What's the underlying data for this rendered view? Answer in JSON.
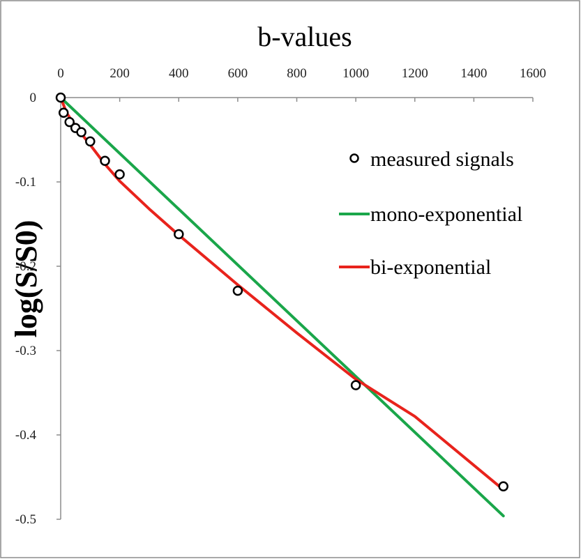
{
  "chart_data": {
    "type": "scatter",
    "xlabel": "b-values",
    "ylabel": "log(S/S0)",
    "xlim": [
      0,
      1600
    ],
    "ylim": [
      -0.5,
      0
    ],
    "x_axis_position": "top",
    "x_ticks": [
      0,
      200,
      400,
      600,
      800,
      1000,
      1200,
      1400,
      1600
    ],
    "y_ticks": [
      0,
      -0.1,
      -0.2,
      -0.3,
      -0.4,
      -0.5
    ],
    "x_tick_labels": [
      "0",
      "200",
      "400",
      "600",
      "800",
      "1000",
      "1200",
      "1400",
      "1600"
    ],
    "y_tick_labels": [
      "0",
      "-0.1",
      "-0.2",
      "-0.3",
      "-0.4",
      "-0.5"
    ],
    "grid": false,
    "legend_position": "top-right",
    "series": [
      {
        "name": "measured signals",
        "kind": "markers",
        "color": "#000000",
        "x": [
          0,
          10,
          30,
          50,
          70,
          100,
          150,
          200,
          400,
          600,
          1000,
          1500
        ],
        "y": [
          0,
          -0.018,
          -0.029,
          -0.036,
          -0.041,
          -0.052,
          -0.075,
          -0.091,
          -0.162,
          -0.229,
          -0.341,
          -0.461
        ]
      },
      {
        "name": "mono-exponential",
        "kind": "line",
        "color": "#1aa64a",
        "x": [
          0,
          1500
        ],
        "y": [
          0,
          -0.496
        ]
      },
      {
        "name": "bi-exponential",
        "kind": "line",
        "color": "#e8231c",
        "x": [
          0,
          20,
          50,
          100,
          150,
          200,
          300,
          400,
          600,
          800,
          1000,
          1200,
          1500
        ],
        "y": [
          0,
          -0.018,
          -0.034,
          -0.056,
          -0.079,
          -0.099,
          -0.132,
          -0.163,
          -0.222,
          -0.279,
          -0.334,
          -0.378,
          -0.465
        ]
      }
    ]
  }
}
